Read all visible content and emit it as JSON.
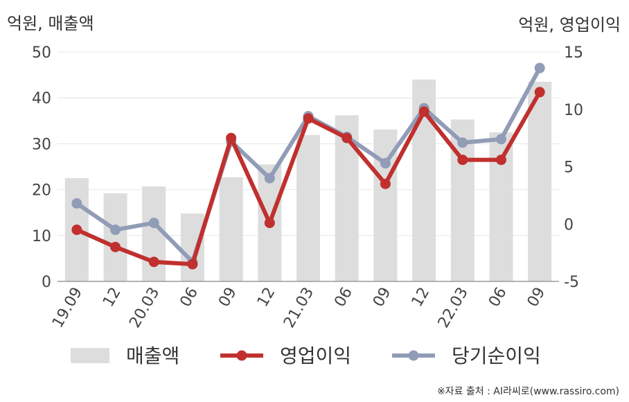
{
  "chart_data": {
    "type": "bar",
    "categories": [
      "19.09",
      "12",
      "20.03",
      "06",
      "09",
      "12",
      "21.03",
      "06",
      "09",
      "12",
      "22.03",
      "06",
      "09"
    ],
    "left_unit": "억원, 매출액",
    "right_unit": "억원, 영업이익",
    "ylim_left": [
      0,
      50
    ],
    "ylim_right": [
      -5,
      15
    ],
    "yticks_left": [
      "0",
      "10",
      "20",
      "30",
      "40",
      "50"
    ],
    "yticks_right": [
      "-5",
      "0",
      "5",
      "10",
      "15"
    ],
    "grid": true,
    "legend_position": "bottom",
    "series": [
      {
        "name": "매출액",
        "type": "bar",
        "axis": "left",
        "color": "#dddddd",
        "values": [
          22.5,
          19.2,
          20.7,
          14.8,
          22.7,
          25.5,
          31.9,
          36.2,
          33.1,
          44.0,
          35.3,
          32.5,
          43.5
        ]
      },
      {
        "name": "영업이익",
        "type": "line",
        "axis": "right",
        "color": "#c0302e",
        "values": [
          -0.5,
          -2.0,
          -3.3,
          -3.5,
          7.5,
          0.1,
          9.2,
          7.5,
          3.5,
          9.8,
          5.6,
          5.6,
          11.5
        ]
      },
      {
        "name": "당기순이익",
        "type": "line",
        "axis": "right",
        "color": "#919cb6",
        "values": [
          1.8,
          -0.5,
          0.1,
          -3.3,
          7.2,
          4.0,
          9.4,
          7.6,
          5.3,
          10.1,
          7.1,
          7.4,
          13.6
        ]
      }
    ]
  },
  "source_note": "※자료 출처 : AI라씨로(www.rassiro.com)"
}
